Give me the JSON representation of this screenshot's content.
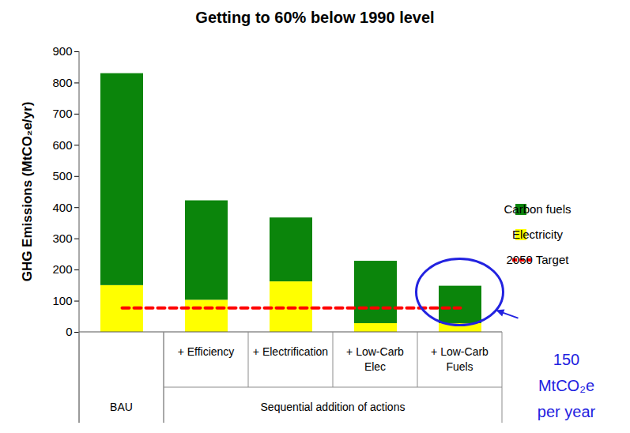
{
  "chart_data": {
    "type": "bar",
    "title": "Getting to 60% below 1990 level",
    "y_label": "GHG Emissions (MtCO₂e/yr)",
    "categories": [
      "BAU",
      "+ Efficiency",
      "+ Electrification",
      "+ Low-Carb Elec",
      "+ Low-Carb Fuels"
    ],
    "category_group": {
      "label": "Sequential addition of actions",
      "categories": [
        "+ Efficiency",
        "+ Electrification",
        "+ Low-Carb Elec",
        "+ Low-Carb Fuels"
      ]
    },
    "series": [
      {
        "name": "Carbon fuels",
        "color": "#0b850b",
        "values": [
          680,
          319,
          205,
          200,
          120
        ]
      },
      {
        "name": "Electricity",
        "color": "#ffff00",
        "values": [
          150,
          103,
          162,
          28,
          28
        ]
      },
      {
        "name": "2050 Target",
        "type": "line",
        "color": "#ff0000",
        "line_style": "dashed",
        "values": [
          78,
          78,
          78,
          78,
          78
        ]
      }
    ],
    "ylim": [
      0,
      900
    ],
    "yticks": [
      0,
      100,
      200,
      300,
      400,
      500,
      600,
      700,
      800,
      900
    ],
    "stacked": true,
    "grid": false,
    "legend": "right",
    "annotations": [
      {
        "text": [
          "150",
          "MtCO₂e",
          "per year"
        ],
        "category": "+ Low-Carb Fuels",
        "color": "#2222e0"
      }
    ]
  }
}
